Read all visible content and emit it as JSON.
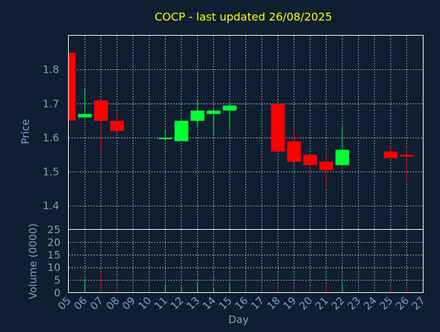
{
  "chart_data": {
    "type": "candlestick",
    "title": "COCP - last updated 26/08/2025",
    "xlabel": "Day",
    "ylabel": "Price",
    "ylabel_volume": "Volume (0000)",
    "x_ticks": [
      "05",
      "06",
      "07",
      "08",
      "09",
      "10",
      "11",
      "12",
      "13",
      "14",
      "15",
      "16",
      "17",
      "18",
      "19",
      "20",
      "21",
      "22",
      "23",
      "24",
      "25",
      "26",
      "27"
    ],
    "price_ylim": [
      1.33,
      1.9
    ],
    "price_ticks": [
      1.4,
      1.5,
      1.6,
      1.7,
      1.8
    ],
    "volume_ylim": [
      0,
      25
    ],
    "volume_ticks": [
      0,
      5,
      10,
      15,
      20,
      25
    ],
    "grid": true,
    "colors": {
      "background": "#0f1e31",
      "up": "#00ff33",
      "down": "#ff0000",
      "axis_text": "#7f9fc8",
      "title": "#ffff00",
      "grid": "#c8c8c8"
    },
    "candles": [
      {
        "day": "05",
        "open": 1.85,
        "high": 1.85,
        "low": 1.65,
        "close": 1.65,
        "volume": 0
      },
      {
        "day": "06",
        "open": 1.66,
        "high": 1.745,
        "low": 1.66,
        "close": 1.67,
        "volume": 5.5
      },
      {
        "day": "07",
        "open": 1.71,
        "high": 1.71,
        "low": 1.56,
        "close": 1.65,
        "volume": 7.5
      },
      {
        "day": "08",
        "open": 1.65,
        "high": 1.675,
        "low": 1.62,
        "close": 1.62,
        "volume": 2.5
      },
      {
        "day": "11",
        "open": 1.6,
        "high": 1.625,
        "low": 1.59,
        "close": 1.6,
        "volume": 3.5
      },
      {
        "day": "12",
        "open": 1.59,
        "high": 1.655,
        "low": 1.59,
        "close": 1.65,
        "volume": 2.5
      },
      {
        "day": "13",
        "open": 1.65,
        "high": 1.71,
        "low": 1.63,
        "close": 1.68,
        "volume": 4.5
      },
      {
        "day": "14",
        "open": 1.67,
        "high": 1.685,
        "low": 1.61,
        "close": 1.68,
        "volume": 2
      },
      {
        "day": "15",
        "open": 1.68,
        "high": 1.7,
        "low": 1.625,
        "close": 1.695,
        "volume": 3.5
      },
      {
        "day": "18",
        "open": 1.7,
        "high": 1.7,
        "low": 1.56,
        "close": 1.56,
        "volume": 3.5
      },
      {
        "day": "19",
        "open": 1.59,
        "high": 1.63,
        "low": 1.53,
        "close": 1.53,
        "volume": 3.5
      },
      {
        "day": "20",
        "open": 1.55,
        "high": 1.55,
        "low": 1.505,
        "close": 1.52,
        "volume": 2.5
      },
      {
        "day": "21",
        "open": 1.53,
        "high": 1.565,
        "low": 1.45,
        "close": 1.505,
        "volume": 3.5
      },
      {
        "day": "22",
        "open": 1.52,
        "high": 1.635,
        "low": 1.52,
        "close": 1.565,
        "volume": 4.5
      },
      {
        "day": "25",
        "open": 1.56,
        "high": 1.58,
        "low": 1.54,
        "close": 1.54,
        "volume": 3
      },
      {
        "day": "26",
        "open": 1.55,
        "high": 1.575,
        "low": 1.47,
        "close": 1.545,
        "volume": 3
      }
    ]
  }
}
